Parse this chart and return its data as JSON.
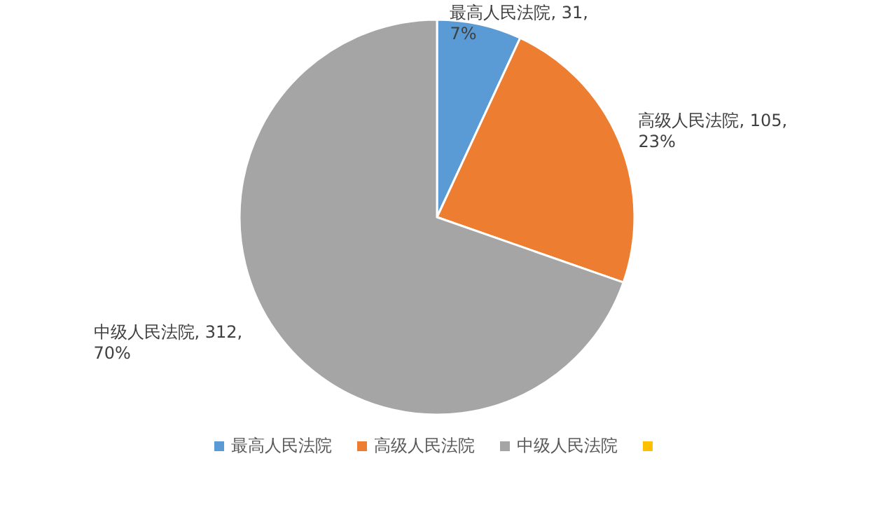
{
  "chart_data": {
    "type": "pie",
    "categories": [
      "最高人民法院",
      "高级人民法院",
      "中级人民法院",
      null
    ],
    "values": [
      31,
      105,
      312,
      0
    ],
    "colors": [
      "#5b9bd5",
      "#ed7d31",
      "#a5a5a5",
      "#ffc000"
    ],
    "value_labels": [
      ", 31, 7%",
      ", 105, 23%",
      ", 312, 70%",
      null
    ],
    "legend": "bottom"
  }
}
